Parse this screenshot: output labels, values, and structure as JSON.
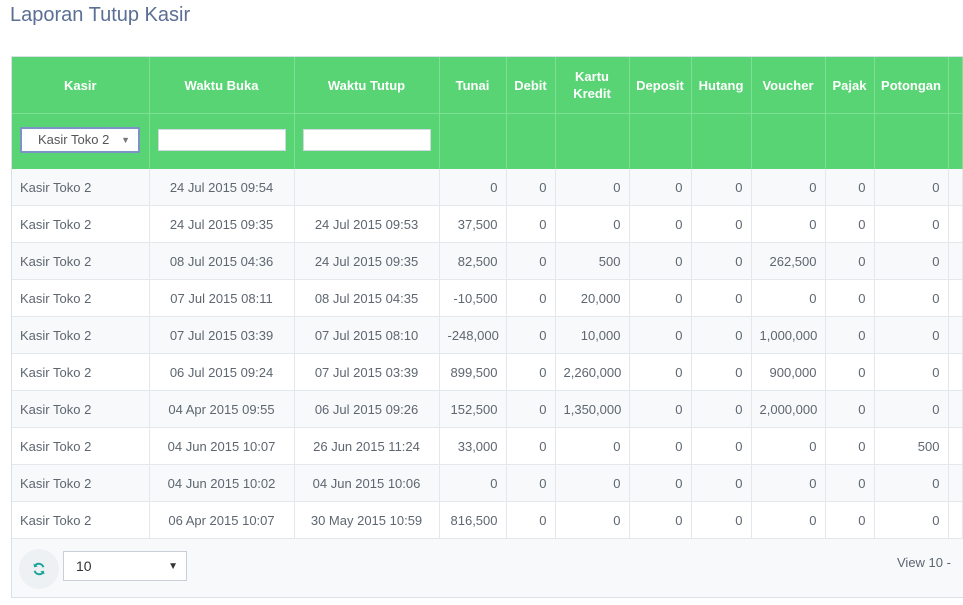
{
  "page": {
    "title": "Laporan Tutup Kasir"
  },
  "columns": {
    "kasir": "Kasir",
    "waktu_buka": "Waktu Buka",
    "waktu_tutup": "Waktu Tutup",
    "tunai": "Tunai",
    "debit": "Debit",
    "kartu_kredit_1": "Kartu",
    "kartu_kredit_2": "Kredit",
    "deposit": "Deposit",
    "hutang": "Hutang",
    "voucher": "Voucher",
    "pajak": "Pajak",
    "potongan": "Potongan"
  },
  "filters": {
    "kasir_selected": "Kasir Toko 2",
    "waktu_buka_value": "",
    "waktu_tutup_value": ""
  },
  "rows": [
    [
      "Kasir Toko 2",
      "24 Jul 2015 09:54",
      "",
      "0",
      "0",
      "0",
      "0",
      "0",
      "0",
      "0",
      "0"
    ],
    [
      "Kasir Toko 2",
      "24 Jul 2015 09:35",
      "24 Jul 2015 09:53",
      "37,500",
      "0",
      "0",
      "0",
      "0",
      "0",
      "0",
      "0"
    ],
    [
      "Kasir Toko 2",
      "08 Jul 2015 04:36",
      "24 Jul 2015 09:35",
      "82,500",
      "0",
      "500",
      "0",
      "0",
      "262,500",
      "0",
      "0"
    ],
    [
      "Kasir Toko 2",
      "07 Jul 2015 08:11",
      "08 Jul 2015 04:35",
      "-10,500",
      "0",
      "20,000",
      "0",
      "0",
      "0",
      "0",
      "0"
    ],
    [
      "Kasir Toko 2",
      "07 Jul 2015 03:39",
      "07 Jul 2015 08:10",
      "-248,000",
      "0",
      "10,000",
      "0",
      "0",
      "1,000,000",
      "0",
      "0"
    ],
    [
      "Kasir Toko 2",
      "06 Jul 2015 09:24",
      "07 Jul 2015 03:39",
      "899,500",
      "0",
      "2,260,000",
      "0",
      "0",
      "900,000",
      "0",
      "0"
    ],
    [
      "Kasir Toko 2",
      "04 Apr 2015 09:55",
      "06 Jul 2015 09:26",
      "152,500",
      "0",
      "1,350,000",
      "0",
      "0",
      "2,000,000",
      "0",
      "0"
    ],
    [
      "Kasir Toko 2",
      "04 Jun 2015 10:07",
      "26 Jun 2015 11:24",
      "33,000",
      "0",
      "0",
      "0",
      "0",
      "0",
      "0",
      "500"
    ],
    [
      "Kasir Toko 2",
      "04 Jun 2015 10:02",
      "04 Jun 2015 10:06",
      "0",
      "0",
      "0",
      "0",
      "0",
      "0",
      "0",
      "0"
    ],
    [
      "Kasir Toko 2",
      "06 Apr 2015 10:07",
      "30 May 2015 10:59",
      "816,500",
      "0",
      "0",
      "0",
      "0",
      "0",
      "0",
      "0"
    ]
  ],
  "pager": {
    "page_size": "10",
    "view_info": "View 10 -"
  },
  "icons": {
    "refresh": "refresh-icon",
    "dropdown": "chevron-down-icon"
  },
  "colors": {
    "header_green": "#59d474",
    "title_blue": "#5a6f93",
    "refresh_teal": "#1aa39a"
  }
}
